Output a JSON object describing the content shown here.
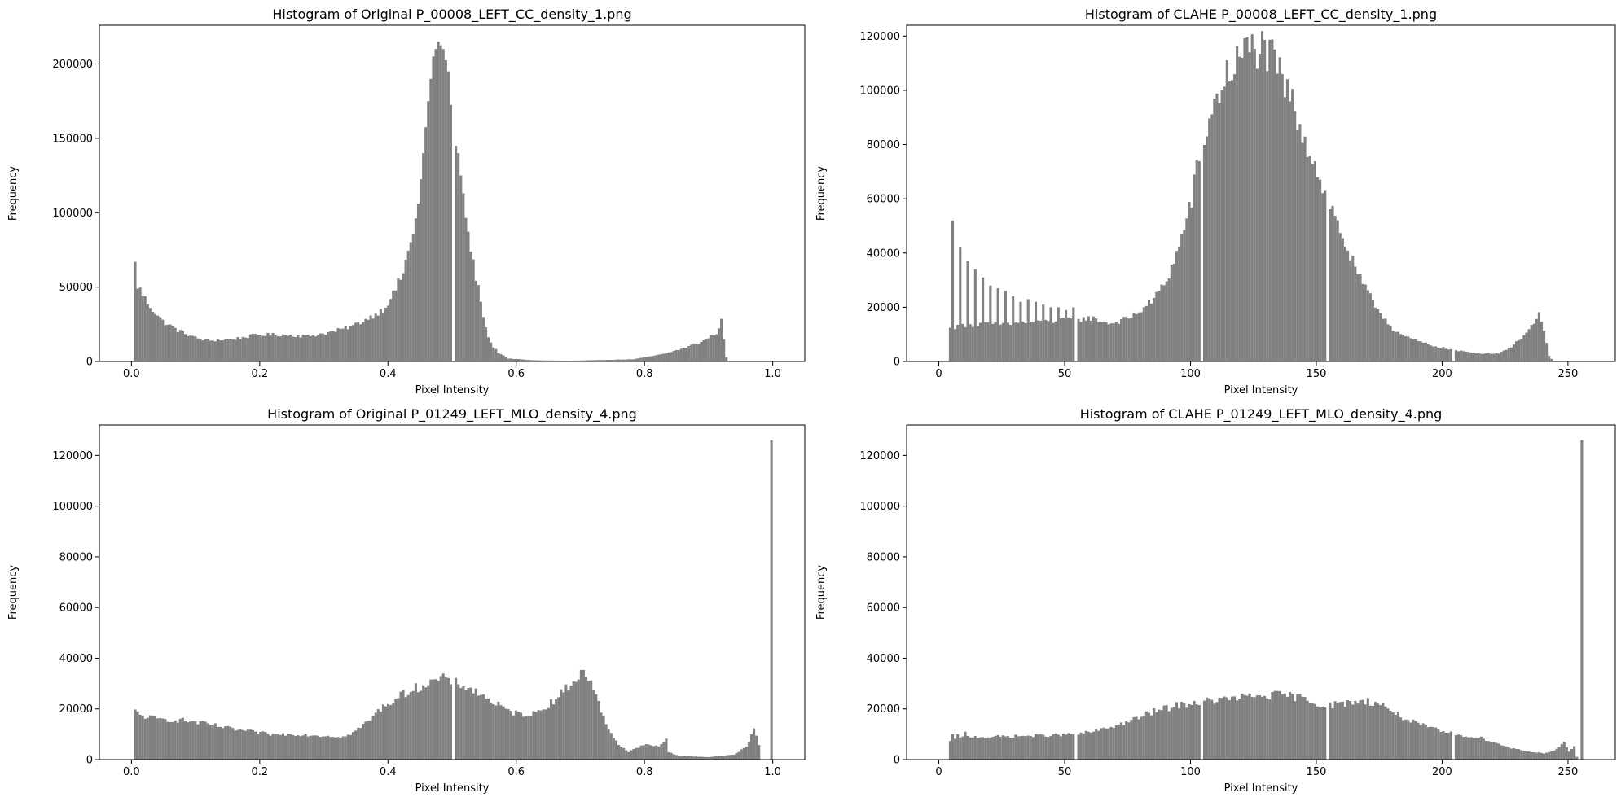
{
  "colors": {
    "bar": "#808080",
    "axis": "#000000",
    "background": "#ffffff"
  },
  "chart_data": [
    {
      "type": "bar",
      "title": "Histogram of Original P_00008_LEFT_CC_density_1.png",
      "xlabel": "Pixel Intensity",
      "ylabel": "Frequency",
      "xlim": [
        -0.05,
        1.05
      ],
      "ylim": [
        0,
        226000
      ],
      "xticks": [
        0.0,
        0.2,
        0.4,
        0.6,
        0.8,
        1.0
      ],
      "xtick_labels": [
        "0.0",
        "0.2",
        "0.4",
        "0.6",
        "0.8",
        "1.0"
      ],
      "yticks": [
        0,
        50000,
        100000,
        150000,
        200000
      ],
      "ytick_labels": [
        "0",
        "50000",
        "100000",
        "150000",
        "200000"
      ],
      "bins": 256,
      "bin_start": 0.0,
      "bin_width": 0.00390625,
      "gaps": [
        0.5
      ],
      "profile": [
        [
          0,
          0
        ],
        [
          1,
          65000
        ],
        [
          2,
          51000
        ],
        [
          3,
          48000
        ],
        [
          5,
          42000
        ],
        [
          8,
          35000
        ],
        [
          12,
          27000
        ],
        [
          18,
          21000
        ],
        [
          25,
          16000
        ],
        [
          30,
          14000
        ],
        [
          40,
          15000
        ],
        [
          50,
          18000
        ],
        [
          60,
          18000
        ],
        [
          70,
          17000
        ],
        [
          80,
          20000
        ],
        [
          88,
          24000
        ],
        [
          95,
          30000
        ],
        [
          100,
          35000
        ],
        [
          104,
          45000
        ],
        [
          108,
          60000
        ],
        [
          111,
          80000
        ],
        [
          114,
          105000
        ],
        [
          116,
          140000
        ],
        [
          118,
          175000
        ],
        [
          120,
          205000
        ],
        [
          122,
          215000
        ],
        [
          124,
          210000
        ],
        [
          126,
          195000
        ],
        [
          128,
          150000
        ],
        [
          130,
          140000
        ],
        [
          133,
          95000
        ],
        [
          136,
          65000
        ],
        [
          139,
          40000
        ],
        [
          141,
          22000
        ],
        [
          143,
          12000
        ],
        [
          146,
          6000
        ],
        [
          150,
          2000
        ],
        [
          160,
          800
        ],
        [
          175,
          500
        ],
        [
          200,
          1500
        ],
        [
          212,
          5000
        ],
        [
          220,
          9000
        ],
        [
          228,
          14000
        ],
        [
          232,
          18000
        ],
        [
          234,
          21000
        ],
        [
          235,
          28000
        ],
        [
          237,
          3000
        ],
        [
          238,
          0
        ],
        [
          256,
          0
        ]
      ]
    },
    {
      "type": "bar",
      "title": "Histogram of CLAHE P_00008_LEFT_CC_density_1.png",
      "xlabel": "Pixel Intensity",
      "ylabel": "Frequency",
      "xlim": [
        -12.8,
        268.8
      ],
      "ylim": [
        0,
        124000
      ],
      "xticks": [
        0,
        50,
        100,
        150,
        200,
        250
      ],
      "xtick_labels": [
        "0",
        "50",
        "100",
        "150",
        "200",
        "250"
      ],
      "yticks": [
        0,
        20000,
        40000,
        60000,
        80000,
        100000,
        120000
      ],
      "ytick_labels": [
        "0",
        "20000",
        "40000",
        "60000",
        "80000",
        "100000",
        "120000"
      ],
      "bins": 256,
      "bin_start": 0,
      "bin_width": 1,
      "gaps": [
        54,
        104,
        154,
        204
      ],
      "spikes": [
        [
          5,
          52000
        ],
        [
          8,
          42000
        ],
        [
          11,
          37000
        ],
        [
          14,
          34000
        ],
        [
          17,
          31000
        ],
        [
          20,
          28000
        ],
        [
          23,
          27000
        ],
        [
          26,
          26000
        ],
        [
          29,
          24000
        ],
        [
          32,
          22000
        ],
        [
          35,
          23000
        ],
        [
          38,
          22000
        ],
        [
          41,
          21000
        ],
        [
          44,
          20000
        ],
        [
          47,
          20000
        ],
        [
          50,
          19000
        ],
        [
          53,
          20000
        ]
      ],
      "profile": [
        [
          0,
          0
        ],
        [
          3,
          0
        ],
        [
          4,
          12000
        ],
        [
          10,
          13500
        ],
        [
          30,
          14000
        ],
        [
          55,
          15500
        ],
        [
          60,
          16000
        ],
        [
          68,
          14000
        ],
        [
          75,
          16000
        ],
        [
          80,
          19000
        ],
        [
          85,
          23000
        ],
        [
          90,
          30000
        ],
        [
          95,
          42000
        ],
        [
          100,
          60000
        ],
        [
          104,
          80000
        ],
        [
          108,
          92000
        ],
        [
          112,
          102000
        ],
        [
          116,
          108000
        ],
        [
          120,
          113000
        ],
        [
          124,
          116000
        ],
        [
          128,
          115000
        ],
        [
          132,
          111000
        ],
        [
          136,
          104000
        ],
        [
          140,
          95000
        ],
        [
          145,
          83000
        ],
        [
          150,
          70000
        ],
        [
          155,
          58000
        ],
        [
          160,
          46000
        ],
        [
          165,
          34000
        ],
        [
          170,
          25000
        ],
        [
          175,
          18000
        ],
        [
          180,
          12000
        ],
        [
          185,
          9000
        ],
        [
          195,
          6000
        ],
        [
          205,
          4000
        ],
        [
          215,
          3000
        ],
        [
          222,
          3000
        ],
        [
          228,
          6000
        ],
        [
          232,
          10000
        ],
        [
          236,
          14000
        ],
        [
          238,
          17000
        ],
        [
          240,
          11000
        ],
        [
          242,
          2000
        ],
        [
          244,
          0
        ],
        [
          256,
          0
        ]
      ]
    },
    {
      "type": "bar",
      "title": "Histogram of Original P_01249_LEFT_MLO_density_4.png",
      "xlabel": "Pixel Intensity",
      "ylabel": "Frequency",
      "xlim": [
        -0.05,
        1.05
      ],
      "ylim": [
        0,
        132000
      ],
      "xticks": [
        0.0,
        0.2,
        0.4,
        0.6,
        0.8,
        1.0
      ],
      "xtick_labels": [
        "0.0",
        "0.2",
        "0.4",
        "0.6",
        "0.8",
        "1.0"
      ],
      "yticks": [
        0,
        20000,
        40000,
        60000,
        80000,
        100000,
        120000
      ],
      "ytick_labels": [
        "0",
        "20000",
        "40000",
        "60000",
        "80000",
        "100000",
        "120000"
      ],
      "bins": 256,
      "bin_start": 0.0,
      "bin_width": 0.00390625,
      "gaps": [
        0.5
      ],
      "profile": [
        [
          0,
          0
        ],
        [
          1,
          19000
        ],
        [
          3,
          17500
        ],
        [
          10,
          16000
        ],
        [
          20,
          15500
        ],
        [
          30,
          14000
        ],
        [
          40,
          12000
        ],
        [
          55,
          10000
        ],
        [
          65,
          10000
        ],
        [
          75,
          9500
        ],
        [
          85,
          9000
        ],
        [
          90,
          12000
        ],
        [
          95,
          16000
        ],
        [
          100,
          21000
        ],
        [
          105,
          24000
        ],
        [
          110,
          27000
        ],
        [
          115,
          29000
        ],
        [
          120,
          31000
        ],
        [
          125,
          32000
        ],
        [
          130,
          30000
        ],
        [
          135,
          28000
        ],
        [
          140,
          25000
        ],
        [
          145,
          22000
        ],
        [
          150,
          19000
        ],
        [
          155,
          18000
        ],
        [
          160,
          18000
        ],
        [
          165,
          21000
        ],
        [
          170,
          25000
        ],
        [
          175,
          30000
        ],
        [
          179,
          34000
        ],
        [
          182,
          33000
        ],
        [
          186,
          22000
        ],
        [
          190,
          12000
        ],
        [
          194,
          6000
        ],
        [
          198,
          3000
        ],
        [
          202,
          5000
        ],
        [
          206,
          6000
        ],
        [
          210,
          5000
        ],
        [
          213,
          8000
        ],
        [
          214,
          3000
        ],
        [
          218,
          1500
        ],
        [
          230,
          1000
        ],
        [
          240,
          2000
        ],
        [
          245,
          5000
        ],
        [
          248,
          12000
        ],
        [
          250,
          6000
        ],
        [
          251,
          0
        ],
        [
          254,
          0
        ],
        [
          255,
          126000
        ],
        [
          256,
          0
        ]
      ]
    },
    {
      "type": "bar",
      "title": "Histogram of CLAHE P_01249_LEFT_MLO_density_4.png",
      "xlabel": "Pixel Intensity",
      "ylabel": "Frequency",
      "xlim": [
        -12.8,
        268.8
      ],
      "ylim": [
        0,
        132000
      ],
      "xticks": [
        0,
        50,
        100,
        150,
        200,
        250
      ],
      "xtick_labels": [
        "0",
        "50",
        "100",
        "150",
        "200",
        "250"
      ],
      "yticks": [
        0,
        20000,
        40000,
        60000,
        80000,
        100000,
        120000
      ],
      "ytick_labels": [
        "0",
        "20000",
        "40000",
        "60000",
        "80000",
        "100000",
        "120000"
      ],
      "bins": 256,
      "bin_start": 0,
      "bin_width": 1,
      "gaps": [
        54,
        104,
        154,
        204
      ],
      "spikes": [
        [
          5,
          10000
        ],
        [
          7,
          10000
        ],
        [
          10,
          11000
        ]
      ],
      "profile": [
        [
          0,
          0
        ],
        [
          3,
          0
        ],
        [
          4,
          7000
        ],
        [
          10,
          9000
        ],
        [
          20,
          9000
        ],
        [
          40,
          9500
        ],
        [
          55,
          10000
        ],
        [
          65,
          12000
        ],
        [
          75,
          15000
        ],
        [
          85,
          19000
        ],
        [
          95,
          21500
        ],
        [
          105,
          23000
        ],
        [
          115,
          24000
        ],
        [
          125,
          25000
        ],
        [
          135,
          25500
        ],
        [
          140,
          25000
        ],
        [
          145,
          24000
        ],
        [
          150,
          22000
        ],
        [
          155,
          21500
        ],
        [
          160,
          22000
        ],
        [
          165,
          23000
        ],
        [
          170,
          23000
        ],
        [
          175,
          22000
        ],
        [
          180,
          19000
        ],
        [
          185,
          16000
        ],
        [
          190,
          14000
        ],
        [
          195,
          12500
        ],
        [
          200,
          11000
        ],
        [
          205,
          10000
        ],
        [
          215,
          8500
        ],
        [
          220,
          7000
        ],
        [
          225,
          5000
        ],
        [
          235,
          3000
        ],
        [
          240,
          2500
        ],
        [
          245,
          4000
        ],
        [
          248,
          7000
        ],
        [
          250,
          3000
        ],
        [
          252,
          5000
        ],
        [
          253,
          1000
        ],
        [
          254,
          0
        ],
        [
          255,
          126000
        ],
        [
          256,
          0
        ]
      ]
    }
  ]
}
